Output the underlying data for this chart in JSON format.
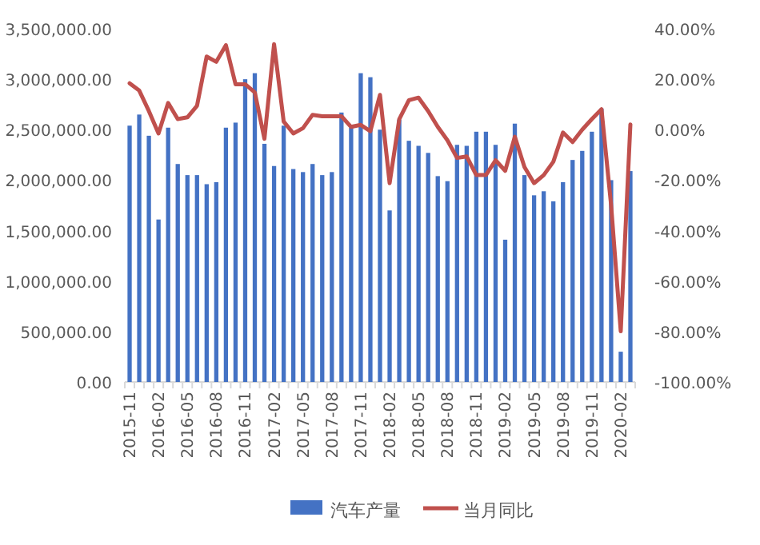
{
  "chart_data": {
    "type": "bar",
    "categories": [
      "2015-11",
      null,
      null,
      "2016-02",
      null,
      null,
      "2016-05",
      null,
      null,
      "2016-08",
      null,
      null,
      "2016-11",
      null,
      null,
      "2017-02",
      null,
      null,
      "2017-05",
      null,
      null,
      "2017-08",
      null,
      null,
      "2017-11",
      null,
      null,
      "2018-02",
      null,
      null,
      "2018-05",
      null,
      null,
      "2018-08",
      null,
      null,
      "2018-11",
      null,
      null,
      "2019-02",
      null,
      null,
      "2019-05",
      null,
      null,
      "2019-08",
      null,
      null,
      "2019-11",
      null,
      null,
      "2020-02",
      null
    ],
    "series": [
      {
        "name": "汽车产量",
        "color": "#4472c4",
        "values": [
          2540000,
          2650000,
          2440000,
          1610000,
          2520000,
          2160000,
          2050000,
          2050000,
          1960000,
          1980000,
          2520000,
          2570000,
          3000000,
          3060000,
          2360000,
          2140000,
          2540000,
          2110000,
          2080000,
          2160000,
          2050000,
          2080000,
          2670000,
          2520000,
          3060000,
          3020000,
          2500000,
          1700000,
          2600000,
          2390000,
          2340000,
          2270000,
          2040000,
          1990000,
          2350000,
          2340000,
          2480000,
          2480000,
          2350000,
          1410000,
          2560000,
          2050000,
          1850000,
          1890000,
          1790000,
          1980000,
          2200000,
          2290000,
          2480000,
          2710000,
          2000000,
          300000,
          2090000
        ]
      },
      {
        "name": "当月同比",
        "type": "line",
        "axis": "y2",
        "color": "#c0504d",
        "values": [
          18.4,
          15.5,
          7.4,
          -1.5,
          10.6,
          4.2,
          4.9,
          9.5,
          29.0,
          26.9,
          33.5,
          18.0,
          18.0,
          14.8,
          -3.6,
          33.9,
          3.2,
          -1.5,
          0.6,
          5.9,
          5.3,
          5.3,
          5.3,
          1.1,
          1.9,
          -0.6,
          13.8,
          -21.2,
          4.2,
          11.7,
          12.7,
          7.4,
          1.1,
          -4.2,
          -11.2,
          -10.6,
          -18.0,
          -18.0,
          -12.1,
          -16.3,
          -2.8,
          -14.8,
          -21.2,
          -18.0,
          -12.7,
          -1.1,
          -4.9,
          0,
          4.2,
          8.1,
          -30,
          -79.9,
          2.1
        ]
      }
    ],
    "ylim": [
      0,
      3500000
    ],
    "yticks": [
      {
        "value": 0,
        "label": "0.00"
      },
      {
        "value": 500000,
        "label": "500,000.00"
      },
      {
        "value": 1000000,
        "label": "1,000,000.00"
      },
      {
        "value": 1500000,
        "label": "1,500,000.00"
      },
      {
        "value": 2000000,
        "label": "2,000,000.00"
      },
      {
        "value": 2500000,
        "label": "2,500,000.00"
      },
      {
        "value": 3000000,
        "label": "3,000,000.00"
      },
      {
        "value": 3500000,
        "label": "3,500,000.00"
      }
    ],
    "y2lim": [
      -100,
      40
    ],
    "y2ticks": [
      {
        "value": -100,
        "label": "-100.00%"
      },
      {
        "value": -80,
        "label": "-80.00%"
      },
      {
        "value": -60,
        "label": "-60.00%"
      },
      {
        "value": -40,
        "label": "-40.00%"
      },
      {
        "value": -20,
        "label": "-20.00%"
      },
      {
        "value": 0,
        "label": "0.00%"
      },
      {
        "value": 20,
        "label": "20.00%"
      },
      {
        "value": 40,
        "label": "40.00%"
      }
    ],
    "legend": "bottom"
  }
}
